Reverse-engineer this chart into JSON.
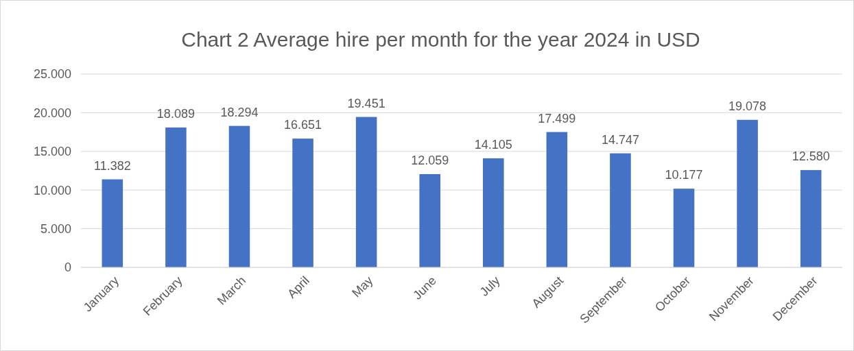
{
  "chart_data": {
    "type": "bar",
    "title": "Chart 2 Average hire per month for the year 2024 in USD",
    "categories": [
      "January",
      "February",
      "March",
      "April",
      "May",
      "June",
      "July",
      "August",
      "September",
      "October",
      "November",
      "December"
    ],
    "values": [
      11382,
      18089,
      18294,
      16651,
      19451,
      12059,
      14105,
      17499,
      14747,
      10177,
      19078,
      12580
    ],
    "value_labels": [
      "11.382",
      "18.089",
      "18.294",
      "16.651",
      "19.451",
      "12.059",
      "14.105",
      "17.499",
      "14.747",
      "10.177",
      "19.078",
      "12.580"
    ],
    "color": "#4472c4",
    "ylim": [
      0,
      25000
    ],
    "yticks": [
      0,
      {
        "value": 5000,
        "label": "5.000"
      },
      {
        "value": 10000,
        "label": "10.000"
      },
      {
        "value": 15000,
        "label": "15.000"
      },
      {
        "value": 20000,
        "label": "20.000"
      },
      {
        "value": 25000,
        "label": "25.000"
      }
    ],
    "grid": "y"
  }
}
